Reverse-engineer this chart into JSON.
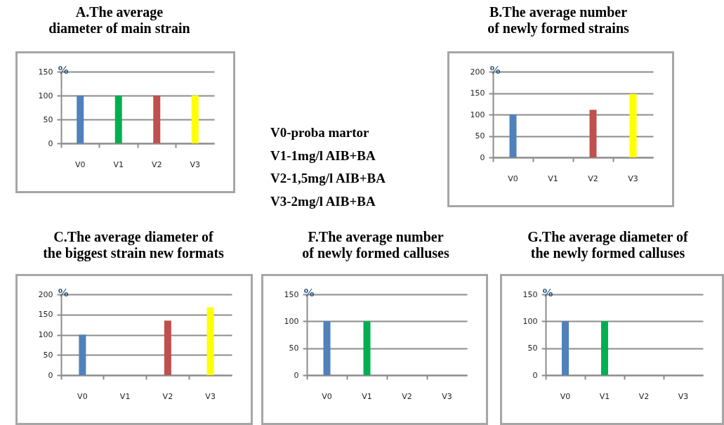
{
  "chart_data": [
    {
      "type": "bar",
      "title": "A.The average diameter of main strain",
      "ylabel": "%",
      "categories": [
        "V0",
        "V1",
        "V2",
        "V3"
      ],
      "values": [
        100,
        100,
        100,
        100
      ],
      "colors": [
        "#4f81bd",
        "#00b050",
        "#c0504d",
        "#ffff00"
      ],
      "ylim": [
        0,
        150
      ],
      "yticks": [
        0,
        50,
        100,
        150
      ],
      "grid": "y"
    },
    {
      "type": "other",
      "annotations": [
        "V0-proba martor",
        "V1-1mg/l AIB+BA",
        "V2-1,5mg/l AIB+BA",
        "V3-2mg/l AIB+BA"
      ]
    },
    {
      "type": "bar",
      "title": "B.The average number of newly formed strains",
      "ylabel": "%",
      "categories": [
        "V0",
        "V1",
        "V2",
        "V3"
      ],
      "values": [
        100,
        null,
        111,
        148
      ],
      "colors": [
        "#4f81bd",
        null,
        "#c0504d",
        "#ffff00"
      ],
      "ylim": [
        0,
        200
      ],
      "yticks": [
        0,
        50,
        100,
        150,
        200
      ],
      "grid": "y"
    },
    {
      "type": "bar",
      "title": "C.The average diameter of the biggest strain new formats",
      "ylabel": "%",
      "categories": [
        "V0",
        "V1",
        "V2",
        "V3"
      ],
      "values": [
        100,
        null,
        135,
        168
      ],
      "colors": [
        "#4f81bd",
        null,
        "#c0504d",
        "#ffff00"
      ],
      "ylim": [
        0,
        200
      ],
      "yticks": [
        0,
        50,
        100,
        150,
        200
      ],
      "grid": "y"
    },
    {
      "type": "bar",
      "title": "F.The average number of newly formed calluses",
      "ylabel": "%",
      "categories": [
        "V0",
        "V1",
        "V2",
        "V3"
      ],
      "values": [
        100,
        100,
        null,
        null
      ],
      "colors": [
        "#4f81bd",
        "#00b050",
        null,
        null
      ],
      "ylim": [
        0,
        150
      ],
      "yticks": [
        0,
        50,
        100,
        150
      ],
      "grid": "y"
    },
    {
      "type": "bar",
      "title": "G.The average diameter of the newly formed calluses",
      "ylabel": "%",
      "categories": [
        "V0",
        "V1",
        "V2",
        "V3"
      ],
      "values": [
        100,
        100,
        null,
        null
      ],
      "colors": [
        "#4f81bd",
        "#00b050",
        null,
        null
      ],
      "ylim": [
        0,
        150
      ],
      "yticks": [
        0,
        50,
        100,
        150
      ],
      "grid": "y"
    }
  ]
}
